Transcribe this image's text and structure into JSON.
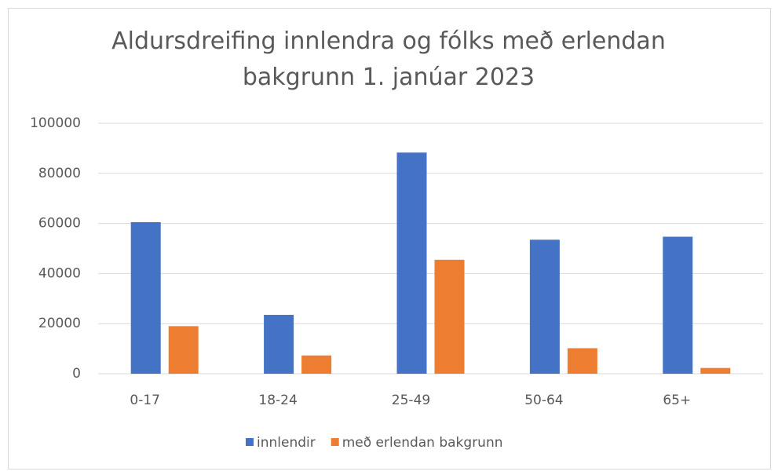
{
  "chart_data": {
    "type": "bar",
    "title": "Aldursdreifing innlendra og fólks með erlendan bakgrunn 1. janúar 2023",
    "categories": [
      "0-17",
      "18-24",
      "25-49",
      "50-64",
      "65+"
    ],
    "series": [
      {
        "name": "innlendir",
        "color": "#4472c4",
        "values": [
          60500,
          23500,
          88300,
          53500,
          54700
        ]
      },
      {
        "name": "með erlendan bakgrunn",
        "color": "#ed7d31",
        "values": [
          19000,
          7300,
          45500,
          10200,
          2300
        ]
      }
    ],
    "ylim": [
      0,
      100000
    ],
    "yticks": [
      0,
      20000,
      40000,
      60000,
      80000,
      100000
    ],
    "grid": true,
    "legend": "bottom"
  }
}
